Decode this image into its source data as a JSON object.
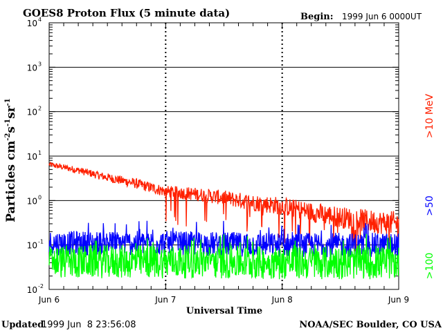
{
  "header": {
    "title": "GOES8 Proton Flux (5 minute data)",
    "begin_label": "Begin:",
    "begin_value": "1999 Jun 6 0000UT"
  },
  "footer": {
    "updated_label": "Updated",
    "updated_value": "1999 Jun  8 23:56:08",
    "credit": "NOAA/SEC Boulder, CO USA"
  },
  "chart_data": {
    "type": "line",
    "title": "GOES8 Proton Flux (5 minute data)",
    "xlabel": "Universal Time",
    "ylabel_main": "Particles cm",
    "ylabel_parts": [
      "-2",
      "s",
      "-1",
      "sr",
      "-1"
    ],
    "y_scale": "log",
    "ylim": [
      0.01,
      10000
    ],
    "y_ticks": [
      {
        "base": "10",
        "exp": "-2",
        "value": 0.01
      },
      {
        "base": "10",
        "exp": "-1",
        "value": 0.1
      },
      {
        "base": "10",
        "exp": "0",
        "value": 1
      },
      {
        "base": "10",
        "exp": "1",
        "value": 10
      },
      {
        "base": "10",
        "exp": "2",
        "value": 100
      },
      {
        "base": "10",
        "exp": "3",
        "value": 1000
      },
      {
        "base": "10",
        "exp": "4",
        "value": 10000
      }
    ],
    "x_categories": [
      "Jun 6",
      "Jun 7",
      "Jun 8",
      "Jun 9"
    ],
    "grid": true,
    "legend_placement": "right",
    "series": [
      {
        "name": ">10 MeV",
        "color": "#ff2000",
        "day_points": [
          [
            0.0,
            6.5
          ],
          [
            0.25,
            4.8
          ],
          [
            0.5,
            3.3
          ],
          [
            0.75,
            2.4
          ],
          [
            1.0,
            1.6
          ],
          [
            1.25,
            1.4
          ],
          [
            1.5,
            1.15
          ],
          [
            1.75,
            0.9
          ],
          [
            2.0,
            0.75
          ],
          [
            2.25,
            0.55
          ],
          [
            2.5,
            0.42
          ],
          [
            2.75,
            0.34
          ],
          [
            3.0,
            0.3
          ]
        ]
      },
      {
        "name": ">50",
        "color": "#0000ff",
        "day_points": [
          [
            0.0,
            0.11
          ],
          [
            1.0,
            0.11
          ],
          [
            2.0,
            0.1
          ],
          [
            3.0,
            0.1
          ]
        ]
      },
      {
        "name": ">100",
        "color": "#00ff00",
        "day_points": [
          [
            0.0,
            0.042
          ],
          [
            1.0,
            0.042
          ],
          [
            2.0,
            0.04
          ],
          [
            3.0,
            0.04
          ]
        ]
      }
    ]
  }
}
